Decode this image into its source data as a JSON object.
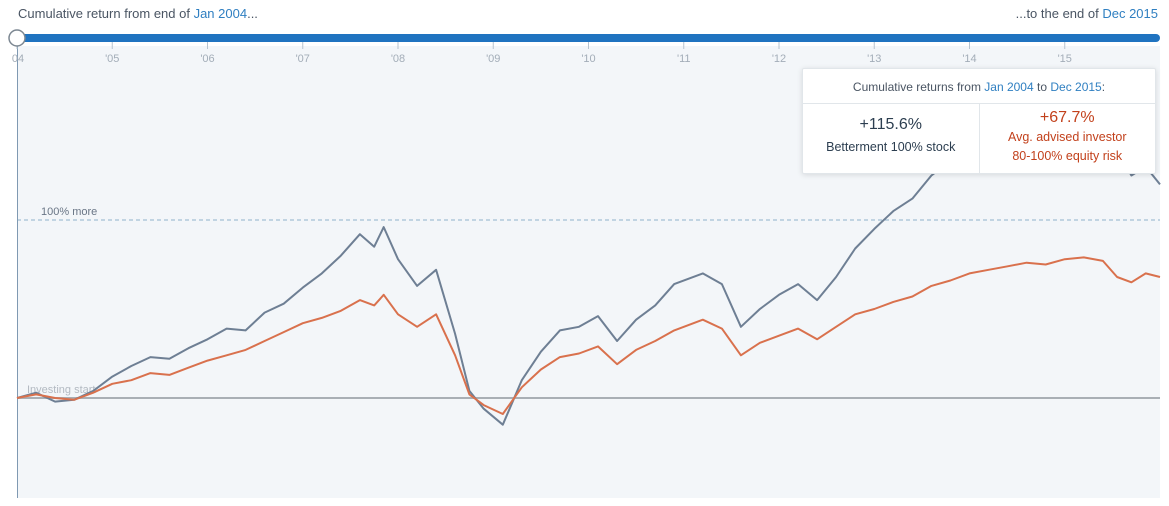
{
  "header": {
    "left_prefix": "Cumulative return from end of ",
    "start_date": "Jan 2004",
    "left_suffix": "...",
    "right_prefix": "...to the end of ",
    "end_date": "Dec 2015"
  },
  "colors": {
    "accent": "#2f7fc1",
    "stock_series": "#6e7f94",
    "advised_series": "#d9714d",
    "plot_background": "#f3f6f9"
  },
  "tooltip": {
    "title_prefix": "Cumulative returns from ",
    "title_start": "Jan 2004",
    "title_mid": " to ",
    "title_end": "Dec 2015",
    "title_suffix": ":",
    "col1_value": "+115.6%",
    "col1_label": "Betterment 100% stock",
    "col2_value": "+67.7%",
    "col2_label1": "Avg. advised investor",
    "col2_label2": "80-100% equity risk"
  },
  "chart_data": {
    "type": "line",
    "x_range": [
      2004,
      2016
    ],
    "y_range": [
      -0.55,
      2.4
    ],
    "grid": false,
    "x_ticks": [
      {
        "x": 2004,
        "label": "04"
      },
      {
        "x": 2005,
        "label": "'05"
      },
      {
        "x": 2006,
        "label": "'06"
      },
      {
        "x": 2007,
        "label": "'07"
      },
      {
        "x": 2008,
        "label": "'08"
      },
      {
        "x": 2009,
        "label": "'09"
      },
      {
        "x": 2010,
        "label": "'10"
      },
      {
        "x": 2011,
        "label": "'11"
      },
      {
        "x": 2012,
        "label": "'12"
      },
      {
        "x": 2013,
        "label": "'13"
      },
      {
        "x": 2014,
        "label": "'14"
      },
      {
        "x": 2015,
        "label": "'15"
      }
    ],
    "reference_lines": [
      {
        "y": 0,
        "label": "Investing start"
      },
      {
        "y": 1.0,
        "label": "100% more"
      }
    ],
    "series": [
      {
        "key": "stock",
        "points": [
          [
            2004,
            0
          ],
          [
            2004.2,
            0.03
          ],
          [
            2004.4,
            -0.02
          ],
          [
            2004.6,
            -0.01
          ],
          [
            2004.8,
            0.04
          ],
          [
            2005,
            0.12
          ],
          [
            2005.2,
            0.18
          ],
          [
            2005.4,
            0.23
          ],
          [
            2005.6,
            0.22
          ],
          [
            2005.8,
            0.28
          ],
          [
            2006,
            0.33
          ],
          [
            2006.2,
            0.39
          ],
          [
            2006.4,
            0.38
          ],
          [
            2006.6,
            0.48
          ],
          [
            2006.8,
            0.53
          ],
          [
            2007,
            0.62
          ],
          [
            2007.2,
            0.7
          ],
          [
            2007.4,
            0.8
          ],
          [
            2007.6,
            0.92
          ],
          [
            2007.75,
            0.85
          ],
          [
            2007.85,
            0.96
          ],
          [
            2008,
            0.78
          ],
          [
            2008.2,
            0.63
          ],
          [
            2008.4,
            0.72
          ],
          [
            2008.6,
            0.36
          ],
          [
            2008.75,
            0.04
          ],
          [
            2008.9,
            -0.06
          ],
          [
            2009.1,
            -0.15
          ],
          [
            2009.3,
            0.1
          ],
          [
            2009.5,
            0.26
          ],
          [
            2009.7,
            0.38
          ],
          [
            2009.9,
            0.4
          ],
          [
            2010.1,
            0.46
          ],
          [
            2010.3,
            0.32
          ],
          [
            2010.5,
            0.44
          ],
          [
            2010.7,
            0.52
          ],
          [
            2010.9,
            0.64
          ],
          [
            2011.2,
            0.7
          ],
          [
            2011.4,
            0.64
          ],
          [
            2011.6,
            0.4
          ],
          [
            2011.8,
            0.5
          ],
          [
            2012,
            0.58
          ],
          [
            2012.2,
            0.64
          ],
          [
            2012.4,
            0.55
          ],
          [
            2012.6,
            0.68
          ],
          [
            2012.8,
            0.84
          ],
          [
            2013,
            0.95
          ],
          [
            2013.2,
            1.05
          ],
          [
            2013.4,
            1.12
          ],
          [
            2013.6,
            1.25
          ],
          [
            2013.8,
            1.33
          ],
          [
            2014,
            1.42
          ],
          [
            2014.2,
            1.5
          ],
          [
            2014.4,
            1.48
          ],
          [
            2014.6,
            1.56
          ],
          [
            2014.8,
            1.62
          ],
          [
            2015,
            1.6
          ],
          [
            2015.2,
            1.66
          ],
          [
            2015.4,
            1.62
          ],
          [
            2015.55,
            1.4
          ],
          [
            2015.7,
            1.25
          ],
          [
            2015.85,
            1.3
          ],
          [
            2016,
            1.2
          ]
        ]
      },
      {
        "key": "advised",
        "points": [
          [
            2004,
            0
          ],
          [
            2004.2,
            0.02
          ],
          [
            2004.4,
            0
          ],
          [
            2004.6,
            -0.01
          ],
          [
            2004.8,
            0.03
          ],
          [
            2005,
            0.08
          ],
          [
            2005.2,
            0.1
          ],
          [
            2005.4,
            0.14
          ],
          [
            2005.6,
            0.13
          ],
          [
            2005.8,
            0.17
          ],
          [
            2006,
            0.21
          ],
          [
            2006.2,
            0.24
          ],
          [
            2006.4,
            0.27
          ],
          [
            2006.6,
            0.32
          ],
          [
            2006.8,
            0.37
          ],
          [
            2007,
            0.42
          ],
          [
            2007.2,
            0.45
          ],
          [
            2007.4,
            0.49
          ],
          [
            2007.6,
            0.55
          ],
          [
            2007.75,
            0.52
          ],
          [
            2007.85,
            0.58
          ],
          [
            2008,
            0.47
          ],
          [
            2008.2,
            0.4
          ],
          [
            2008.4,
            0.47
          ],
          [
            2008.6,
            0.24
          ],
          [
            2008.75,
            0.02
          ],
          [
            2008.9,
            -0.04
          ],
          [
            2009.1,
            -0.09
          ],
          [
            2009.3,
            0.06
          ],
          [
            2009.5,
            0.16
          ],
          [
            2009.7,
            0.23
          ],
          [
            2009.9,
            0.25
          ],
          [
            2010.1,
            0.29
          ],
          [
            2010.3,
            0.19
          ],
          [
            2010.5,
            0.27
          ],
          [
            2010.7,
            0.32
          ],
          [
            2010.9,
            0.38
          ],
          [
            2011.2,
            0.44
          ],
          [
            2011.4,
            0.39
          ],
          [
            2011.6,
            0.24
          ],
          [
            2011.8,
            0.31
          ],
          [
            2012,
            0.35
          ],
          [
            2012.2,
            0.39
          ],
          [
            2012.4,
            0.33
          ],
          [
            2012.6,
            0.4
          ],
          [
            2012.8,
            0.47
          ],
          [
            2013,
            0.5
          ],
          [
            2013.2,
            0.54
          ],
          [
            2013.4,
            0.57
          ],
          [
            2013.6,
            0.63
          ],
          [
            2013.8,
            0.66
          ],
          [
            2014,
            0.7
          ],
          [
            2014.2,
            0.72
          ],
          [
            2014.4,
            0.74
          ],
          [
            2014.6,
            0.76
          ],
          [
            2014.8,
            0.75
          ],
          [
            2015,
            0.78
          ],
          [
            2015.2,
            0.79
          ],
          [
            2015.4,
            0.77
          ],
          [
            2015.55,
            0.68
          ],
          [
            2015.7,
            0.65
          ],
          [
            2015.85,
            0.7
          ],
          [
            2016,
            0.68
          ]
        ]
      }
    ]
  }
}
